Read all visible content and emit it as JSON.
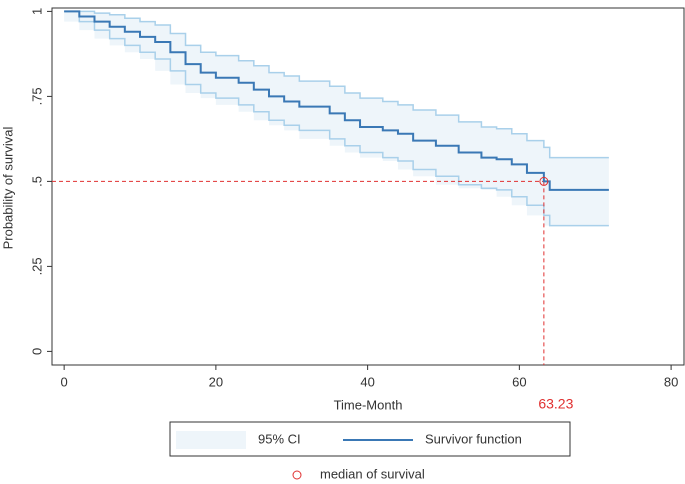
{
  "chart_data": {
    "type": "step",
    "xlabel": "Time-Month",
    "ylabel": "Probability of survival",
    "x": [
      0,
      2,
      4,
      6,
      8,
      10,
      12,
      14,
      16,
      18,
      20,
      23,
      25,
      27,
      29,
      31,
      35,
      37,
      39,
      42,
      44,
      46,
      49,
      52,
      55,
      57,
      59,
      61,
      63.23,
      64,
      71.8
    ],
    "series": [
      {
        "name": "Survivor function",
        "color": "#3a78b5",
        "values": [
          1,
          0.985,
          0.97,
          0.955,
          0.94,
          0.925,
          0.91,
          0.88,
          0.845,
          0.82,
          0.805,
          0.79,
          0.77,
          0.75,
          0.735,
          0.72,
          0.7,
          0.68,
          0.66,
          0.65,
          0.64,
          0.62,
          0.605,
          0.585,
          0.57,
          0.565,
          0.55,
          0.525,
          0.5,
          0.475,
          0.475
        ]
      }
    ],
    "ci": {
      "name": "95% CI",
      "color": "#a9d0ea",
      "fill": "#eef5fa",
      "upper": [
        1,
        1,
        0.995,
        0.99,
        0.98,
        0.97,
        0.96,
        0.935,
        0.9,
        0.88,
        0.87,
        0.855,
        0.84,
        0.82,
        0.81,
        0.795,
        0.78,
        0.76,
        0.745,
        0.735,
        0.725,
        0.71,
        0.695,
        0.675,
        0.66,
        0.655,
        0.64,
        0.62,
        0.6,
        0.57,
        0.57
      ],
      "lower": [
        1,
        0.97,
        0.945,
        0.92,
        0.9,
        0.88,
        0.86,
        0.825,
        0.785,
        0.76,
        0.745,
        0.725,
        0.705,
        0.68,
        0.665,
        0.65,
        0.625,
        0.605,
        0.585,
        0.57,
        0.56,
        0.535,
        0.515,
        0.49,
        0.48,
        0.475,
        0.455,
        0.43,
        0.4,
        0.37,
        0.37
      ]
    },
    "median": {
      "name": "median of survival",
      "x": 63.23,
      "y": 0.5,
      "label": "63.23",
      "color": "#e03030"
    },
    "xlim": [
      -1.6,
      81.7
    ],
    "ylim": [
      -0.04,
      1.01
    ],
    "xticks": [
      0,
      20,
      40,
      60,
      80
    ],
    "yticks": [
      0,
      {
        "value": 0.25,
        "label": ".25"
      },
      {
        "value": 0.5,
        "label": ".5"
      },
      {
        "value": 0.75,
        "label": ".75"
      },
      1
    ]
  }
}
